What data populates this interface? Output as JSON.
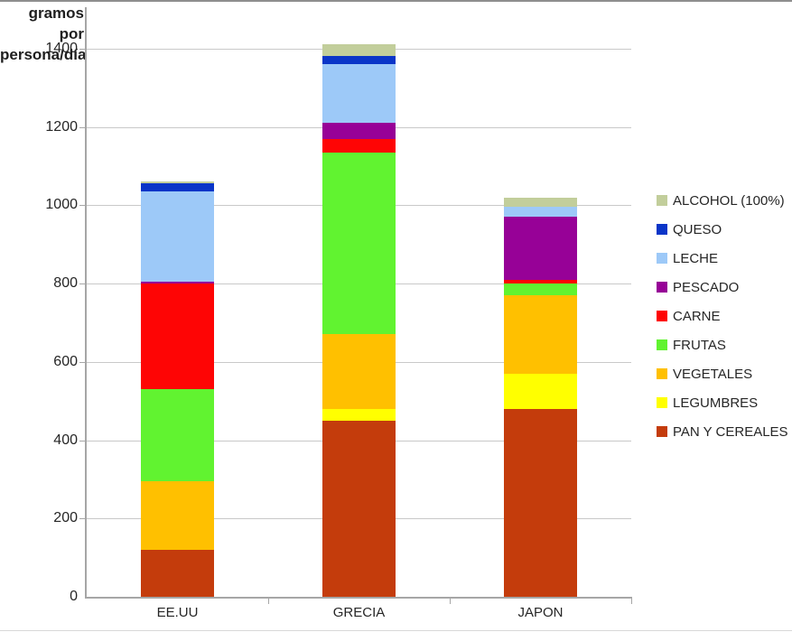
{
  "frame": {
    "background": "#ffffff",
    "top_border_color": "#8e8e8e",
    "bottom_border_color": "#d8d8d8"
  },
  "axis_title": {
    "line1": "gramos por",
    "line2": "persona/día"
  },
  "chart_data": {
    "type": "bar",
    "stacked": true,
    "title": "gramos por persona/día",
    "xlabel": "",
    "ylabel": "gramos por persona/día",
    "categories": [
      "EE.UU",
      "GRECIA",
      "JAPON"
    ],
    "series": [
      {
        "name": "PAN Y CEREALES",
        "color": "#c43c0c",
        "values": [
          120,
          450,
          480
        ]
      },
      {
        "name": "LEGUMBRES",
        "color": "#ffff00",
        "values": [
          0,
          30,
          90
        ]
      },
      {
        "name": "VEGETALES",
        "color": "#ffc000",
        "values": [
          175,
          190,
          200
        ]
      },
      {
        "name": "FRUTAS",
        "color": "#61f330",
        "values": [
          235,
          465,
          30
        ]
      },
      {
        "name": "CARNE",
        "color": "#fe0505",
        "values": [
          270,
          35,
          10
        ]
      },
      {
        "name": "PESCADO",
        "color": "#970197",
        "values": [
          5,
          40,
          160
        ]
      },
      {
        "name": "LECHE",
        "color": "#9dc9f8",
        "values": [
          230,
          150,
          25
        ]
      },
      {
        "name": "QUESO",
        "color": "#0a35c8",
        "values": [
          20,
          20,
          0
        ]
      },
      {
        "name": "ALCOHOL (100%)",
        "color": "#c2ce9b",
        "values": [
          5,
          30,
          25
        ]
      }
    ],
    "totals": [
      1060,
      1410,
      1020
    ],
    "y_ticks": [
      0,
      200,
      400,
      600,
      800,
      1000,
      1200,
      1400
    ],
    "ylim": [
      0,
      1480
    ],
    "grid": true,
    "legend_position": "right",
    "legend_order": "top-to-bottom reverse of stacking"
  },
  "style_colors": {
    "gridline": "#c9c9c9",
    "axis": "#a6a6a6",
    "text": "#262626"
  }
}
